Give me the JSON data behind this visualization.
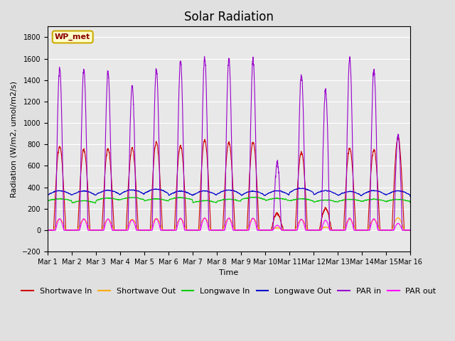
{
  "title": "Solar Radiation",
  "xlabel": "Time",
  "ylabel": "Radiation (W/m2, umol/m2/s)",
  "ylim": [
    -200,
    1900
  ],
  "yticks": [
    -200,
    0,
    200,
    400,
    600,
    800,
    1000,
    1200,
    1400,
    1600,
    1800
  ],
  "watermark": "WP_met",
  "bg_color": "#e0e0e0",
  "plot_bg_color": "#e8e8e8",
  "grid_color": "white",
  "series": {
    "shortwave_in": {
      "color": "#cc0000",
      "label": "Shortwave In",
      "lw": 0.8
    },
    "shortwave_out": {
      "color": "#ffaa00",
      "label": "Shortwave Out",
      "lw": 0.8
    },
    "longwave_in": {
      "color": "#00cc00",
      "label": "Longwave In",
      "lw": 0.8
    },
    "longwave_out": {
      "color": "#0000cc",
      "label": "Longwave Out",
      "lw": 0.8
    },
    "par_in": {
      "color": "#9900cc",
      "label": "PAR in",
      "lw": 0.8
    },
    "par_out": {
      "color": "#ff00ff",
      "label": "PAR out",
      "lw": 0.8
    }
  },
  "n_days": 15,
  "pts_per_day": 288,
  "day_peaks_sw": [
    780,
    750,
    760,
    760,
    820,
    790,
    840,
    820,
    820,
    150,
    730,
    200,
    760,
    750,
    870
  ],
  "day_peaks_par": [
    1500,
    1500,
    1470,
    1350,
    1500,
    1580,
    1610,
    1600,
    1590,
    630,
    1450,
    1300,
    1600,
    1500,
    880
  ],
  "xtick_labels": [
    "Mar 1",
    "Mar 2",
    "Mar 3",
    "Mar 4",
    "Mar 5",
    "Mar 6",
    "Mar 7",
    "Mar 8",
    "Mar 9",
    "Mar 10",
    "Mar 11",
    "Mar 12",
    "Mar 13",
    "Mar 14",
    "Mar 15",
    "Mar 16"
  ],
  "title_fontsize": 12,
  "label_fontsize": 8,
  "tick_fontsize": 7,
  "legend_fontsize": 8
}
